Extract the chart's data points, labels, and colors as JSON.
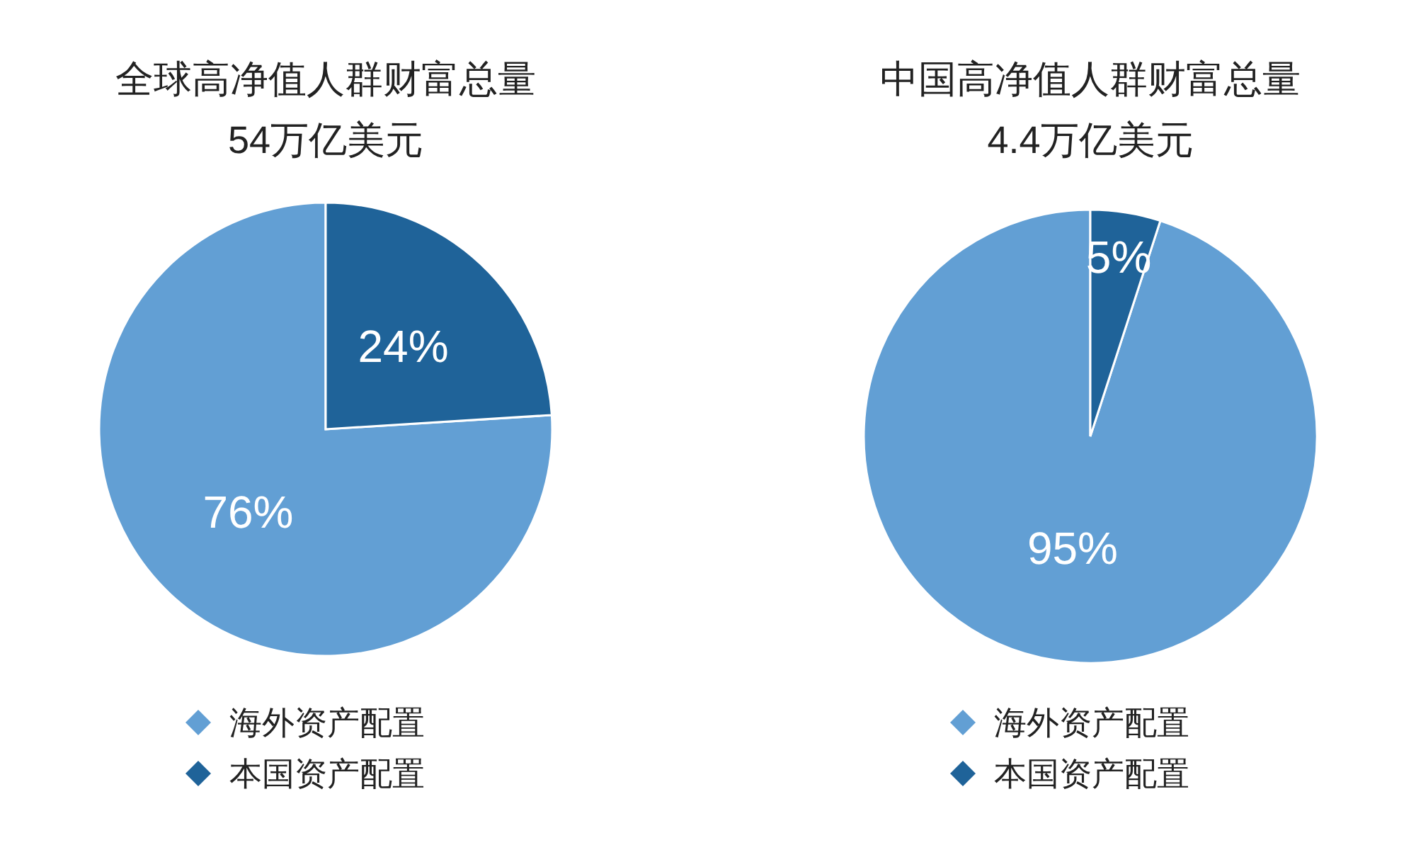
{
  "chart_data": [
    {
      "type": "pie",
      "title": "全球高净值人群财富总量",
      "subtitle": "54万亿美元",
      "categories": [
        "海外资产配置",
        "本国资产配置"
      ],
      "values": [
        76,
        24
      ],
      "colors": [
        "#629fd4",
        "#1f6399"
      ],
      "value_labels": [
        "76%",
        "24%"
      ],
      "legend": "bottom"
    },
    {
      "type": "pie",
      "title": "中国高净值人群财富总量",
      "subtitle": "4.4万亿美元",
      "categories": [
        "海外资产配置",
        "本国资产配置"
      ],
      "values": [
        95,
        5
      ],
      "colors": [
        "#629fd4",
        "#1f6399"
      ],
      "value_labels": [
        "95%",
        "5%"
      ],
      "legend": "bottom"
    }
  ]
}
